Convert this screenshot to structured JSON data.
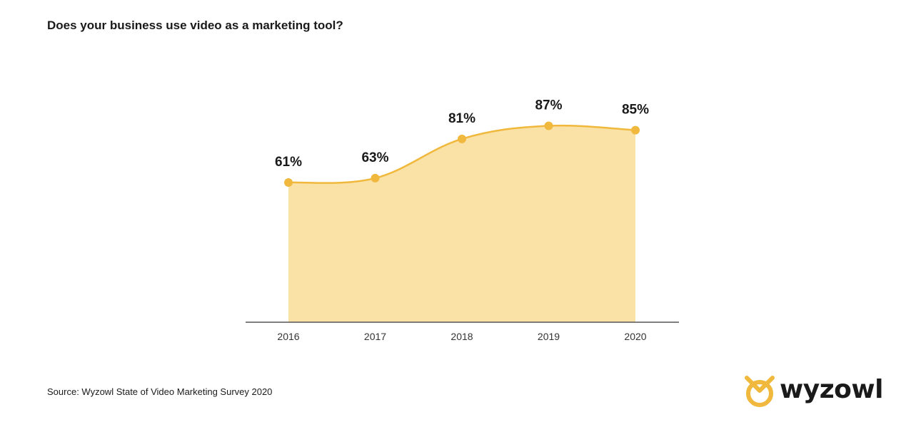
{
  "title": "Does your business use video as a marketing tool?",
  "source": "Source: Wyzowl State of Video Marketing Survey 2020",
  "logo": {
    "text": "wyzowl",
    "icon": "wyzowl-owl-logo-icon"
  },
  "colors": {
    "line": "#f0b83c",
    "fill": "#fae1a6",
    "axis": "#555555",
    "text": "#1a1a1a"
  },
  "chart_data": {
    "type": "area",
    "categories": [
      "2016",
      "2017",
      "2018",
      "2019",
      "2020"
    ],
    "values": [
      61,
      63,
      81,
      87,
      85
    ],
    "value_labels": [
      "61%",
      "63%",
      "81%",
      "87%",
      "85%"
    ],
    "ylim": [
      0,
      100
    ],
    "grid": false,
    "legend": "none"
  }
}
